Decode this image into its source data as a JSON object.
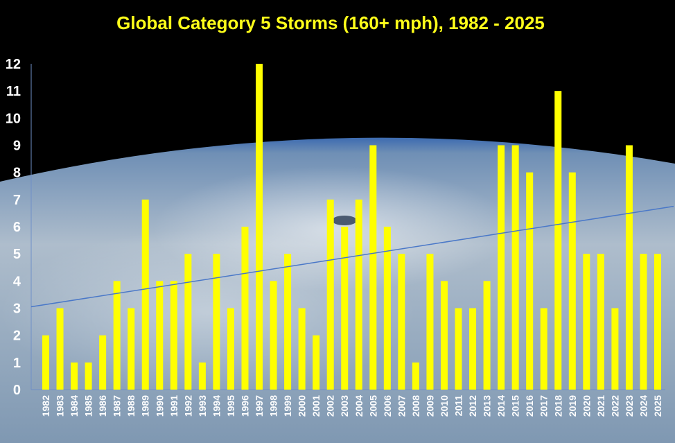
{
  "chart_data": {
    "type": "bar",
    "title": "Global Category 5 Storms (160+ mph), 1982 - 2025",
    "xlabel": "",
    "ylabel": "",
    "ylim": [
      0,
      12
    ],
    "yticks": [
      0,
      1,
      2,
      3,
      4,
      5,
      6,
      7,
      8,
      9,
      10,
      11,
      12
    ],
    "grid": false,
    "bar_color": "#ffff00",
    "trendline": {
      "type": "linear",
      "color": "#4a78c8",
      "start": 3.05,
      "end": 6.75
    },
    "categories": [
      "1982",
      "1983",
      "1984",
      "1985",
      "1986",
      "1987",
      "1988",
      "1989",
      "1990",
      "1991",
      "1992",
      "1993",
      "1994",
      "1995",
      "1996",
      "1997",
      "1998",
      "1999",
      "2000",
      "2001",
      "2002",
      "2003",
      "2004",
      "2005",
      "2006",
      "2007",
      "2008",
      "2009",
      "2010",
      "2011",
      "2012",
      "2013",
      "2014",
      "2015",
      "2016",
      "2017",
      "2018",
      "2019",
      "2020",
      "2021",
      "2022",
      "2023",
      "2024",
      "2025"
    ],
    "values": [
      2,
      3,
      1,
      1,
      2,
      4,
      3,
      7,
      4,
      4,
      5,
      1,
      5,
      3,
      6,
      12,
      4,
      5,
      3,
      2,
      7,
      6,
      7,
      9,
      6,
      5,
      1,
      5,
      4,
      3,
      3,
      4,
      9,
      9,
      8,
      3,
      11,
      8,
      5,
      5,
      3,
      9,
      5,
      5
    ]
  }
}
